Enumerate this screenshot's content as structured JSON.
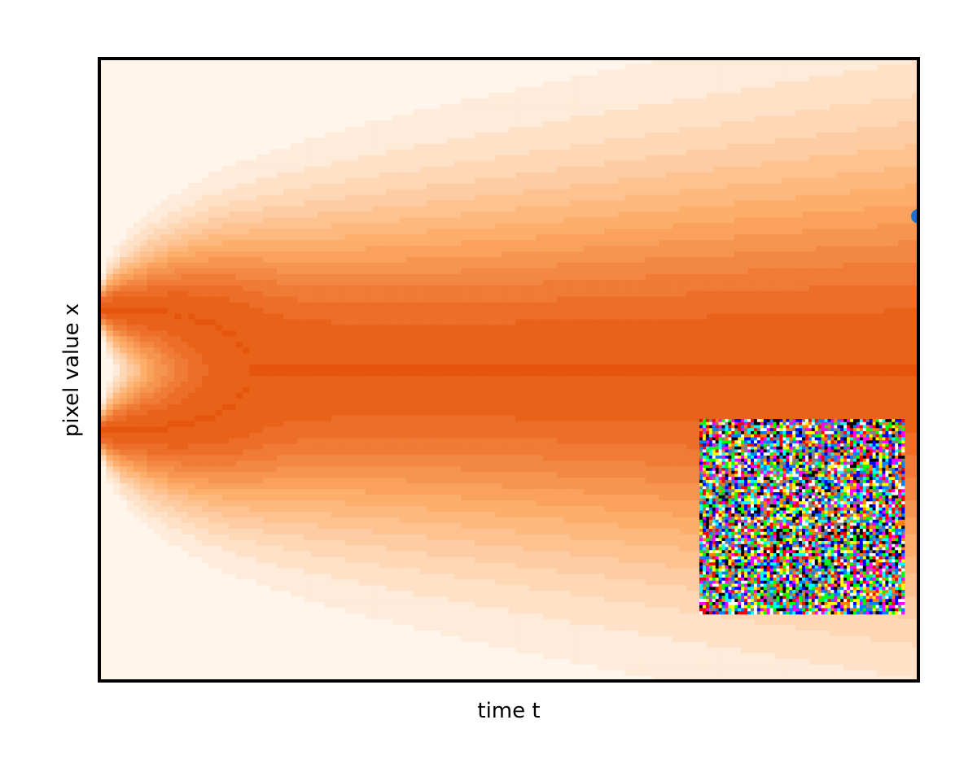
{
  "chart_data": {
    "type": "heatmap",
    "title": "",
    "xlabel": "time t",
    "ylabel": "pixel value x",
    "x_ticks": [],
    "y_ticks": [],
    "grid": false,
    "legend": "none",
    "colormap": "Oranges",
    "colors": {
      "low": "#fff5eb",
      "mid": "#fdae6b",
      "high": "#e6550d",
      "frame": "#000000",
      "marker": "#1f6fd0"
    },
    "xlim": [
      0,
      1
    ],
    "ylim": [
      -1.5,
      1.5
    ],
    "density": {
      "description_modes_at_t0": [
        -0.3,
        0.3
      ],
      "mode_positions_x": [
        -0.3,
        0.3
      ],
      "spread_at_t1": 0.9
    },
    "marker": {
      "x": 1.0,
      "y": 0.74
    },
    "inset": {
      "kind": "random-noise-image",
      "grid": [
        64,
        64
      ]
    }
  }
}
